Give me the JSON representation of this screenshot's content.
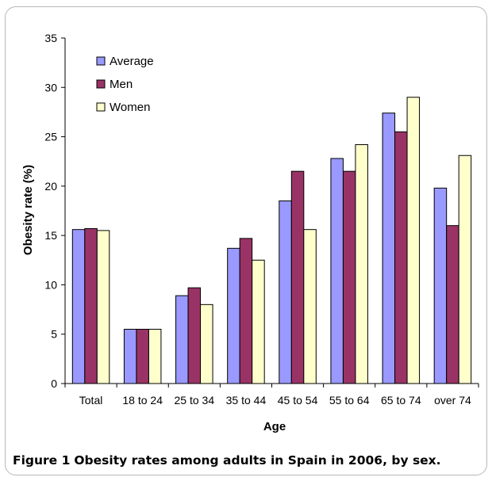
{
  "chart_data": {
    "type": "bar",
    "title": "",
    "xlabel": "Age",
    "ylabel": "Obesity rate (%)",
    "ylim": [
      0,
      35
    ],
    "yticks": [
      0,
      5,
      10,
      15,
      20,
      25,
      30,
      35
    ],
    "grid": false,
    "legend_position": "top-left",
    "categories": [
      "Total",
      "18 to 24",
      "25 to 34",
      "35 to 44",
      "45 to 54",
      "55 to 64",
      "65 to 74",
      "over 74"
    ],
    "series": [
      {
        "name": "Average",
        "color": "#9999ff",
        "values": [
          15.6,
          5.5,
          8.9,
          13.7,
          18.5,
          22.8,
          27.4,
          19.8
        ]
      },
      {
        "name": "Men",
        "color": "#993366",
        "values": [
          15.7,
          5.5,
          9.7,
          14.7,
          21.5,
          21.5,
          25.5,
          16.0
        ]
      },
      {
        "name": "Women",
        "color": "#ffffcc",
        "values": [
          15.5,
          5.5,
          8.0,
          12.5,
          15.6,
          24.2,
          29.0,
          23.1
        ]
      }
    ]
  },
  "caption": {
    "label": "Figure 1",
    "text": "Obesity rates among adults in Spain in 2006, by sex."
  }
}
